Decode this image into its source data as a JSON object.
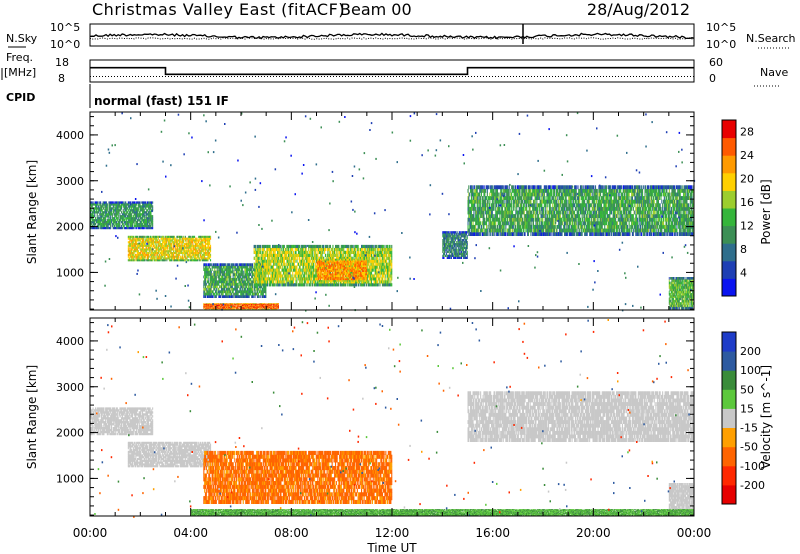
{
  "header": {
    "title": "Christmas Valley East (fitACF)",
    "beam": "Beam 00",
    "date": "28/Aug/2012"
  },
  "status_panels": {
    "nsky_label": "N.Sky",
    "nsearch_label": "N.Search",
    "noise_ticks": [
      "10^5",
      "10^0"
    ],
    "freq_label_1": "Freq.",
    "freq_label_2": "[MHz]",
    "freq_ticks": [
      "18",
      "8"
    ],
    "nave_label": "Nave",
    "nave_ticks": [
      "60",
      "0"
    ],
    "cpid_label": "CPID",
    "cpid_text": "normal (fast) 151 IF",
    "freq_series_mhz": [
      {
        "from_hour": 0,
        "to_hour": 3,
        "value": 14.5
      },
      {
        "from_hour": 3,
        "to_hour": 15,
        "value": 11.5
      },
      {
        "from_hour": 15,
        "to_hour": 24,
        "value": 14.5
      }
    ],
    "nave_dotted_value": 15
  },
  "chart_data": [
    {
      "type": "heatmap",
      "panel": "power",
      "ylabel": "Slant Range [km]",
      "ylim": [
        180,
        4500
      ],
      "yticks": [
        1000,
        2000,
        3000,
        4000
      ],
      "xlim_hours": [
        0,
        24
      ],
      "colorbar": {
        "label": "Power [dB]",
        "ticks": [
          4,
          8,
          12,
          16,
          20,
          24,
          28
        ],
        "range": [
          0,
          30
        ],
        "colors": [
          "#0a14f0",
          "#1e3fb4",
          "#2f6e8c",
          "#3c8f55",
          "#35b53b",
          "#9ccd2e",
          "#ffd000",
          "#ff9a00",
          "#ff5a00",
          "#e80000"
        ]
      },
      "regions": [
        {
          "t0": 0.0,
          "t1": 2.5,
          "r0": 1950,
          "r1": 2550,
          "value": 11
        },
        {
          "t0": 1.5,
          "t1": 4.8,
          "r0": 1250,
          "r1": 1800,
          "value": 19
        },
        {
          "t0": 4.5,
          "t1": 7.0,
          "r0": 450,
          "r1": 1200,
          "value": 12
        },
        {
          "t0": 6.5,
          "t1": 12.0,
          "r0": 700,
          "r1": 1600,
          "value": 17
        },
        {
          "t0": 9.0,
          "t1": 11.0,
          "r0": 800,
          "r1": 1300,
          "value": 23
        },
        {
          "t0": 14.0,
          "t1": 15.0,
          "r0": 1300,
          "r1": 1900,
          "value": 9
        },
        {
          "t0": 15.0,
          "t1": 24.0,
          "r0": 1800,
          "r1": 2900,
          "value": 12
        },
        {
          "t0": 23.0,
          "t1": 24.0,
          "r0": 200,
          "r1": 900,
          "value": 14
        },
        {
          "t0": 4.5,
          "t1": 7.5,
          "r0": 200,
          "r1": 330,
          "value": 25
        }
      ]
    },
    {
      "type": "heatmap",
      "panel": "velocity",
      "ylabel": "Slant Range [km]",
      "xlabel": "Time UT",
      "xticks": [
        "00:00",
        "04:00",
        "08:00",
        "12:00",
        "16:00",
        "20:00",
        "00:00"
      ],
      "ylim": [
        180,
        4500
      ],
      "yticks": [
        1000,
        2000,
        3000,
        4000
      ],
      "xlim_hours": [
        0,
        24
      ],
      "colorbar": {
        "label": "Velocity [m s^-1]",
        "ticks": [
          200,
          100,
          50,
          15,
          -15,
          -50,
          -100,
          -200
        ],
        "colors": [
          "#1e3cc8",
          "#2d5aa0",
          "#3a8c3a",
          "#5cc83c",
          "#c8c8c8",
          "#ff9f00",
          "#ff6400",
          "#ff2800",
          "#e60000"
        ]
      },
      "regions": [
        {
          "t0": 0.0,
          "t1": 2.5,
          "r0": 1950,
          "r1": 2550,
          "value": 0
        },
        {
          "t0": 1.5,
          "t1": 4.8,
          "r0": 1250,
          "r1": 1800,
          "value": 0
        },
        {
          "t0": 4.5,
          "t1": 12.0,
          "r0": 450,
          "r1": 1600,
          "value": -40
        },
        {
          "t0": 15.0,
          "t1": 24.0,
          "r0": 1800,
          "r1": 2900,
          "value": 0
        },
        {
          "t0": 23.0,
          "t1": 24.0,
          "r0": 200,
          "r1": 900,
          "value": 0
        },
        {
          "t0": 4.0,
          "t1": 24.0,
          "r0": 180,
          "r1": 330,
          "value": 30
        }
      ]
    }
  ]
}
